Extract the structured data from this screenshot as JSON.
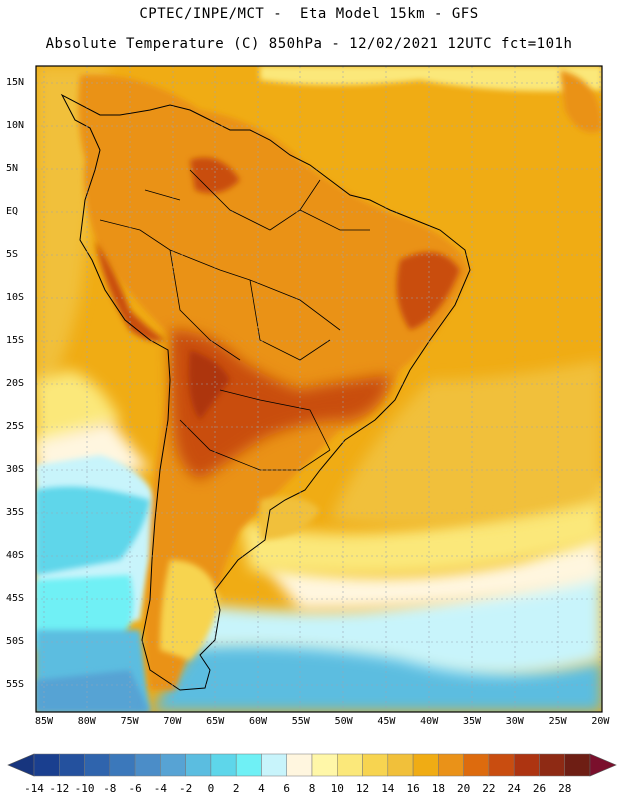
{
  "title": {
    "line1": "CPTEC/INPE/MCT -  Eta Model 15km - GFS",
    "line2": "Absolute Temperature (C) 850hPa - 12/02/2021 12UTC fct=101h"
  },
  "map": {
    "lat_labels": [
      "15N",
      "10N",
      "5N",
      "EQ",
      "5S",
      "10S",
      "15S",
      "20S",
      "25S",
      "30S",
      "35S",
      "40S",
      "45S",
      "50S",
      "55S"
    ],
    "lon_labels": [
      "85W",
      "80W",
      "75W",
      "70W",
      "65W",
      "60W",
      "55W",
      "50W",
      "45W",
      "40W",
      "35W",
      "30W",
      "25W",
      "20W"
    ]
  },
  "colorbar": {
    "labels": [
      "-14",
      "-12",
      "-10",
      "-8",
      "-6",
      "-4",
      "-2",
      "0",
      "2",
      "4",
      "6",
      "8",
      "10",
      "12",
      "14",
      "16",
      "18",
      "20",
      "22",
      "24",
      "26",
      "28"
    ],
    "colors": [
      "#1a3f8f",
      "#24519e",
      "#2f64ad",
      "#3b78bb",
      "#4b8dc8",
      "#57a3d4",
      "#5bbde0",
      "#5ed6ea",
      "#6ff0f5",
      "#c8f4fb",
      "#fff6df",
      "#fff7a8",
      "#fbe87a",
      "#f7d450",
      "#f1c03a",
      "#f0ac14",
      "#ea9218",
      "#dd6b0e",
      "#c94d10",
      "#ad3411",
      "#8e2a14",
      "#6e1e14"
    ]
  }
}
